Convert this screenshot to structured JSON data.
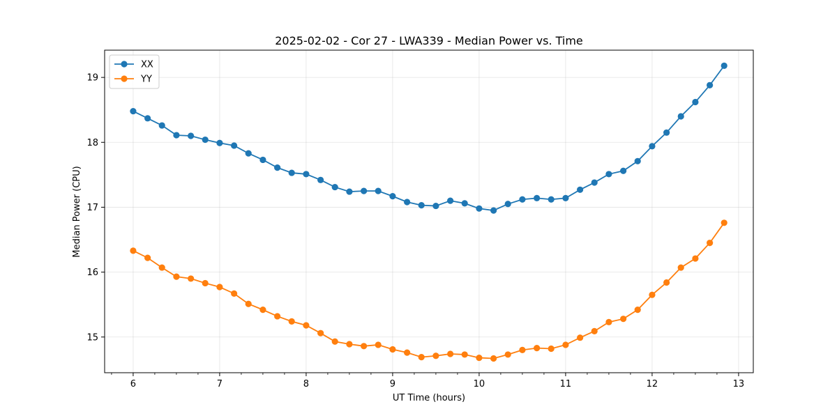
{
  "chart_data": {
    "type": "line",
    "title": "2025-02-02 - Cor 27 - LWA339 - Median Power vs. Time",
    "xlabel": "UT Time (hours)",
    "ylabel": "Median Power (CPU)",
    "xlim": [
      5.67,
      13.17
    ],
    "ylim": [
      14.45,
      19.42
    ],
    "xticks": [
      "6",
      "7",
      "8",
      "9",
      "10",
      "11",
      "12",
      "13"
    ],
    "yticks": [
      "15",
      "16",
      "17",
      "18",
      "19"
    ],
    "grid": true,
    "legend_position": "top-left",
    "x": [
      6.0,
      6.167,
      6.333,
      6.5,
      6.667,
      6.833,
      7.0,
      7.167,
      7.333,
      7.5,
      7.667,
      7.833,
      8.0,
      8.167,
      8.333,
      8.5,
      8.667,
      8.833,
      9.0,
      9.167,
      9.333,
      9.5,
      9.667,
      9.833,
      10.0,
      10.167,
      10.333,
      10.5,
      10.667,
      10.833,
      11.0,
      11.167,
      11.333,
      11.5,
      11.667,
      11.833,
      12.0,
      12.167,
      12.333,
      12.5,
      12.667,
      12.833
    ],
    "series": [
      {
        "name": "XX",
        "color": "#1f77b4",
        "values": [
          18.48,
          18.37,
          18.26,
          18.11,
          18.1,
          18.04,
          17.99,
          17.95,
          17.83,
          17.73,
          17.61,
          17.53,
          17.51,
          17.42,
          17.31,
          17.24,
          17.25,
          17.25,
          17.17,
          17.08,
          17.03,
          17.02,
          17.1,
          17.06,
          16.98,
          16.95,
          17.05,
          17.12,
          17.14,
          17.12,
          17.14,
          17.27,
          17.38,
          17.51,
          17.56,
          17.71,
          17.94,
          18.15,
          18.4,
          18.62,
          18.88,
          19.18
        ]
      },
      {
        "name": "YY",
        "color": "#ff7f0e",
        "values": [
          16.33,
          16.22,
          16.07,
          15.93,
          15.9,
          15.83,
          15.77,
          15.67,
          15.51,
          15.42,
          15.32,
          15.24,
          15.18,
          15.06,
          14.93,
          14.89,
          14.86,
          14.88,
          14.81,
          14.76,
          14.69,
          14.71,
          14.74,
          14.73,
          14.68,
          14.67,
          14.73,
          14.8,
          14.83,
          14.82,
          14.88,
          14.99,
          15.09,
          15.23,
          15.28,
          15.42,
          15.65,
          15.84,
          16.07,
          16.21,
          16.45,
          16.76
        ]
      }
    ]
  }
}
